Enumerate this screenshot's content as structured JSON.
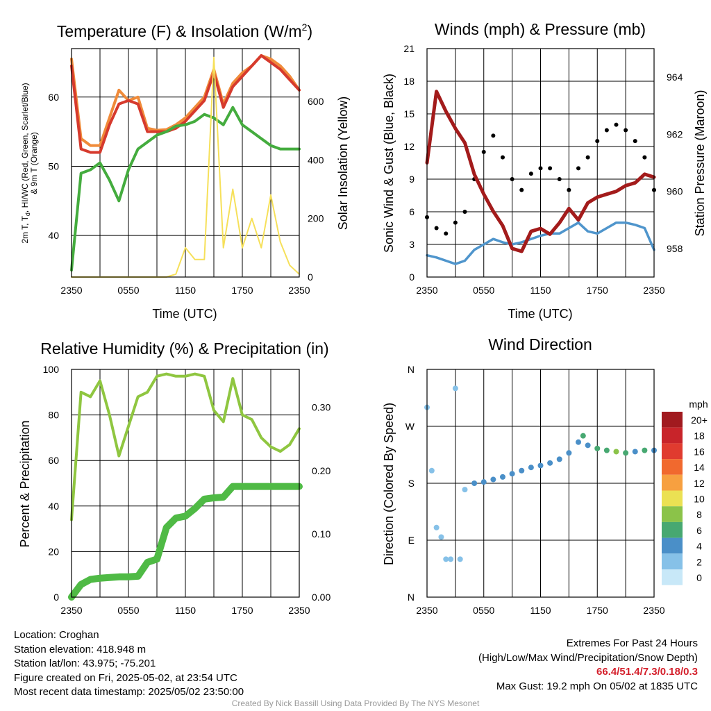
{
  "chart_data": [
    {
      "type": "line",
      "title": "Temperature (F) & Insolation (W/m2)",
      "xlabel": "Time (UTC)",
      "ylabel": "2m T, Td, HI/WC (Red, Green, Scarlet/Blue) & 9m T (Orange)",
      "ylabel2": "Solar Insolation (Yellow)",
      "x_ticks": [
        "2350",
        "0550",
        "1150",
        "1750",
        "2350"
      ],
      "ylim": [
        34,
        67
      ],
      "y_ticks": [
        40,
        50,
        60
      ],
      "ylim2": [
        0,
        780
      ],
      "y2_ticks": [
        0,
        200,
        400,
        600
      ],
      "x_hours": [
        0,
        1,
        2,
        3,
        4,
        5,
        6,
        7,
        8,
        9,
        10,
        11,
        12,
        13,
        14,
        15,
        16,
        17,
        18,
        19,
        20,
        21,
        22,
        23,
        24
      ],
      "series": [
        {
          "name": "9m T",
          "color": "#f08b3a",
          "values": [
            65.5,
            54.0,
            53.0,
            53.0,
            57.0,
            61.0,
            59.5,
            60.0,
            55.5,
            55.2,
            55.3,
            56.0,
            57.0,
            58.5,
            60.0,
            64.0,
            59.0,
            62.0,
            63.5,
            64.5,
            66.0,
            65.5,
            64.5,
            63.0,
            61.0
          ]
        },
        {
          "name": "2m T",
          "color": "#d63a2d",
          "values": [
            64.5,
            52.5,
            52.0,
            52.0,
            56.0,
            59.0,
            59.5,
            59.0,
            55.0,
            55.0,
            55.0,
            55.5,
            56.5,
            58.0,
            59.5,
            63.5,
            58.5,
            61.5,
            63.0,
            64.5,
            66.0,
            65.0,
            64.0,
            62.5,
            61.0
          ]
        },
        {
          "name": "Td",
          "color": "#44ac3e",
          "values": [
            35.0,
            49.0,
            49.5,
            50.5,
            48.0,
            45.0,
            49.5,
            52.5,
            53.5,
            54.5,
            55.0,
            55.8,
            56.0,
            56.5,
            57.5,
            57.0,
            56.0,
            58.5,
            56.0,
            55.0,
            54.0,
            53.0,
            52.5,
            52.5,
            52.5
          ]
        },
        {
          "name": "Solar Insolation",
          "color": "#f6e05a",
          "axis": "right",
          "values": [
            0,
            0,
            0,
            0,
            0,
            0,
            0,
            0,
            0,
            0,
            0,
            10,
            100,
            60,
            60,
            750,
            100,
            300,
            100,
            200,
            100,
            280,
            120,
            40,
            10
          ]
        }
      ]
    },
    {
      "type": "line",
      "title": "Winds (mph) & Pressure (mb)",
      "xlabel": "Time (UTC)",
      "ylabel": "Sonic Wind & Gust (Blue, Black)",
      "ylabel2": "Station Pressure (Maroon)",
      "x_ticks": [
        "2350",
        "0550",
        "1150",
        "1750",
        "2350"
      ],
      "ylim": [
        0,
        21
      ],
      "y_ticks": [
        0,
        3,
        6,
        9,
        12,
        15,
        18,
        21
      ],
      "ylim2": [
        957.0,
        965.0
      ],
      "y2_ticks": [
        958,
        960,
        962,
        964
      ],
      "x_hours": [
        0,
        1,
        2,
        3,
        4,
        5,
        6,
        7,
        8,
        9,
        10,
        11,
        12,
        13,
        14,
        15,
        16,
        17,
        18,
        19,
        20,
        21,
        22,
        23,
        24
      ],
      "series": [
        {
          "name": "Sonic Wind",
          "color": "#4f95cc",
          "values": [
            2.0,
            1.8,
            1.5,
            1.2,
            1.5,
            2.5,
            3.0,
            3.5,
            3.2,
            3.0,
            3.2,
            3.5,
            3.8,
            4.0,
            4.0,
            4.5,
            5.0,
            4.2,
            4.0,
            4.5,
            5.0,
            5.0,
            4.8,
            4.5,
            2.5
          ]
        },
        {
          "name": "Gust",
          "color": "#000000",
          "values": [
            5.5,
            4.5,
            4.0,
            5.0,
            6.0,
            9.0,
            11.5,
            13.0,
            11.0,
            9.0,
            8.0,
            9.5,
            10.0,
            10.0,
            9.0,
            8.0,
            10.0,
            11.0,
            12.5,
            13.5,
            14.0,
            13.5,
            12.5,
            11.0,
            8.0
          ]
        },
        {
          "name": "Station Pressure",
          "color": "#a31b1b",
          "axis": "right",
          "values": [
            961.0,
            963.5,
            962.8,
            962.2,
            961.7,
            960.6,
            959.9,
            959.3,
            958.8,
            958.0,
            957.9,
            958.6,
            958.7,
            958.5,
            958.9,
            959.4,
            959.0,
            959.6,
            959.8,
            959.9,
            960.0,
            960.2,
            960.3,
            960.6,
            960.5
          ]
        }
      ]
    },
    {
      "type": "line",
      "title": "Relative Humidity (%) & Precipitation (in)",
      "xlabel": "",
      "ylabel": "Percent & Precipitation",
      "x_ticks": [
        "2350",
        "0550",
        "1150",
        "1750",
        "2350"
      ],
      "ylim": [
        0,
        100
      ],
      "y_ticks": [
        0,
        20,
        40,
        60,
        80,
        100
      ],
      "ylim2": [
        0,
        0.36
      ],
      "y2_ticks": [
        "0.00",
        "0.10",
        "0.20",
        "0.30"
      ],
      "x_hours": [
        0,
        1,
        2,
        3,
        4,
        5,
        6,
        7,
        8,
        9,
        10,
        11,
        12,
        13,
        14,
        15,
        16,
        17,
        18,
        19,
        20,
        21,
        22,
        23,
        24
      ],
      "series": [
        {
          "name": "Relative Humidity",
          "color": "#8fc640",
          "values": [
            34,
            90,
            88,
            95,
            80,
            62,
            75,
            88,
            90,
            97,
            98,
            97,
            97,
            98,
            97,
            82,
            77,
            96,
            80,
            78,
            70,
            66,
            64,
            67,
            74
          ]
        },
        {
          "name": "Precipitation",
          "color": "#4fba45",
          "axis": "right",
          "values": [
            0.0,
            0.02,
            0.028,
            0.03,
            0.031,
            0.032,
            0.032,
            0.033,
            0.055,
            0.06,
            0.11,
            0.125,
            0.128,
            0.14,
            0.155,
            0.157,
            0.158,
            0.175,
            0.175,
            0.175,
            0.175,
            0.175,
            0.175,
            0.175,
            0.175
          ]
        }
      ]
    },
    {
      "type": "scatter",
      "title": "Wind Direction",
      "xlabel": "",
      "ylabel": "Direction (Colored By Speed)",
      "x_ticks": [
        "2350",
        "0550",
        "1150",
        "1750",
        "2350"
      ],
      "y_ticks": [
        "N",
        "E",
        "S",
        "W",
        "N"
      ],
      "ylim": [
        0,
        360
      ],
      "legend": {
        "title": "mph",
        "labels": [
          "20+",
          "18",
          "16",
          "14",
          "12",
          "10",
          "8",
          "6",
          "4",
          "2",
          "0"
        ],
        "colors": [
          "#a11a1f",
          "#c8242a",
          "#e03b2f",
          "#f1692e",
          "#f7a040",
          "#ebe153",
          "#8bc349",
          "#47a871",
          "#4a8fc8",
          "#86c1e8",
          "#c8e8f8"
        ]
      },
      "x_hours": [
        0,
        0.5,
        1,
        1.5,
        2,
        2.5,
        3,
        3.5,
        4,
        5,
        6,
        7,
        8,
        9,
        10,
        11,
        12,
        13,
        14,
        15,
        16,
        16.5,
        17,
        18,
        19,
        20,
        21,
        22,
        23,
        24
      ],
      "values": [
        300,
        200,
        110,
        95,
        60,
        60,
        330,
        60,
        170,
        180,
        182,
        186,
        190,
        195,
        200,
        205,
        208,
        212,
        218,
        228,
        245,
        255,
        240,
        235,
        232,
        230,
        228,
        230,
        232,
        232
      ],
      "speeds": [
        1,
        1,
        1,
        2,
        1,
        2,
        1,
        1,
        2,
        4,
        4,
        4,
        3,
        4,
        4,
        4,
        3,
        3,
        4,
        4,
        3,
        5,
        4,
        6,
        5,
        7,
        6,
        4,
        5,
        3
      ]
    }
  ],
  "info": {
    "location": "Location: Croghan",
    "elevation": "Station elevation: 418.948 m",
    "latlon": "Station lat/lon: 43.975; -75.201",
    "created": "Figure created on Fri, 2025-05-02, at 23:54 UTC",
    "recent": "Most recent data timestamp: 2025/05/02 23:50:00"
  },
  "extremes": {
    "heading": "Extremes For Past 24 Hours",
    "subheading": "(High/Low/Max Wind/Precipitation/Snow Depth)",
    "values": "66.4/51.4/7.3/0.18/0.3",
    "max_gust": "Max Gust: 19.2 mph On 05/02 at 1835 UTC"
  },
  "credit": "Created By Nick Bassill Using Data Provided By The NYS Mesonet"
}
